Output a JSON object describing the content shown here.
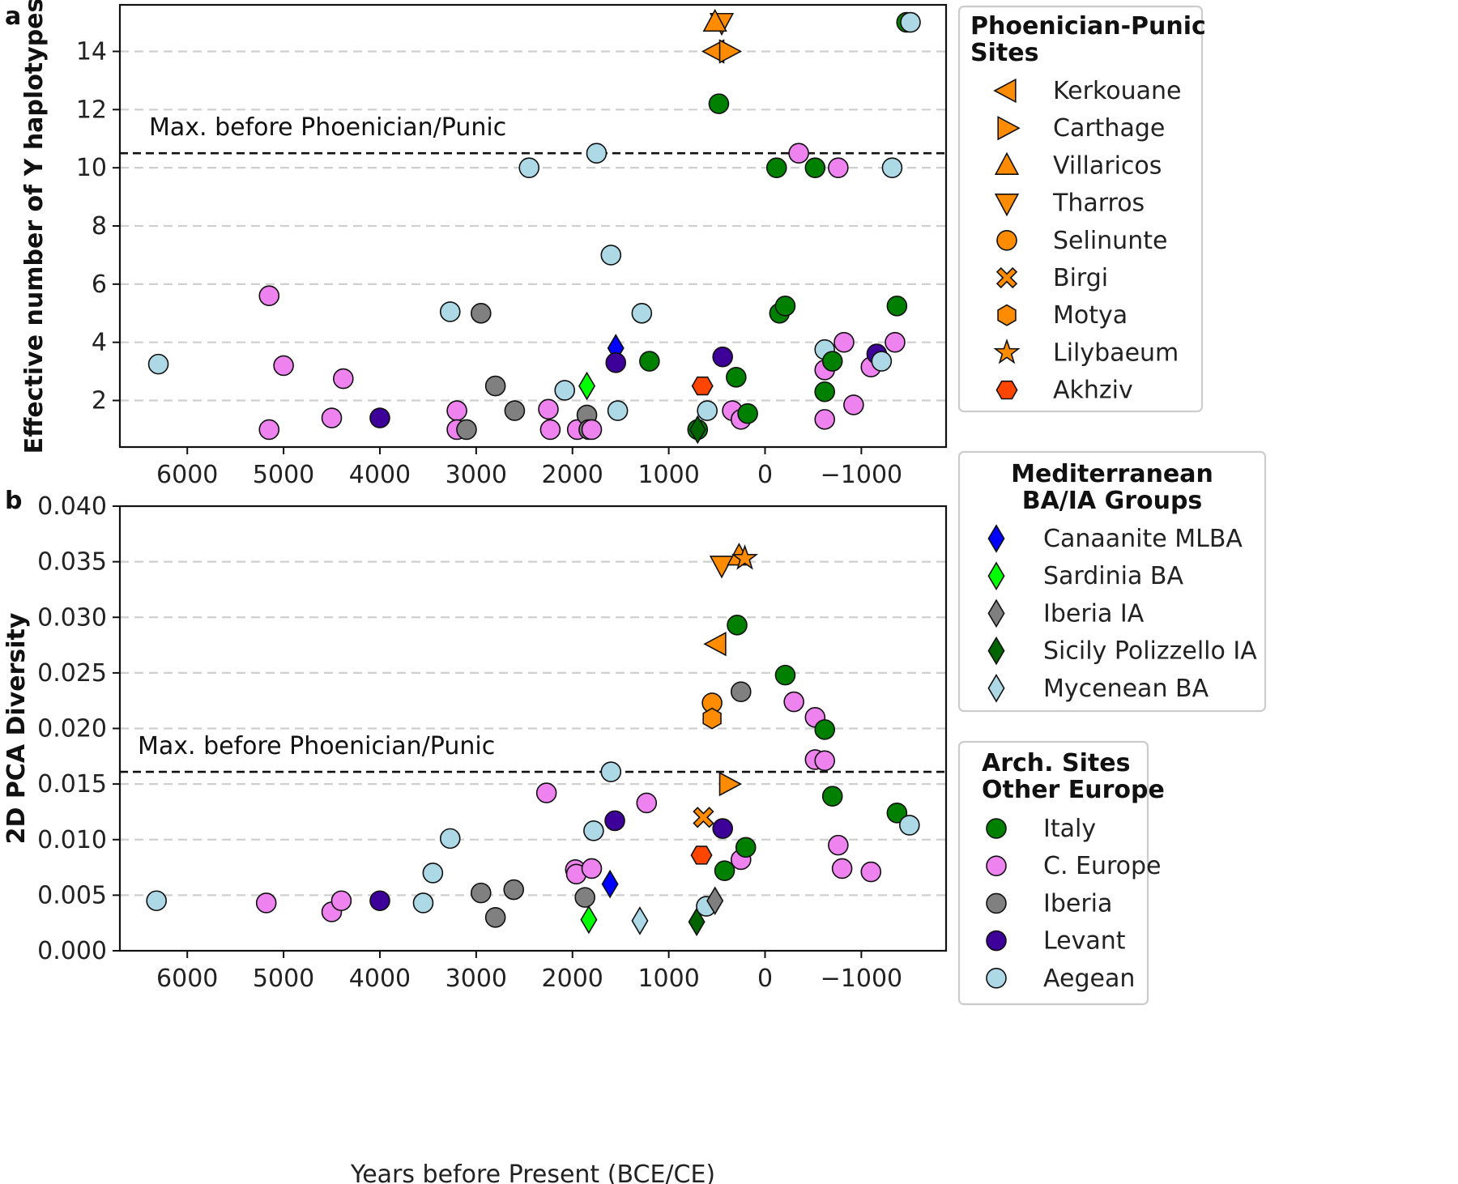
{
  "chart_data": {
    "type": "scatter",
    "xlabel": "Years before Present (BCE/CE)",
    "xlim": [
      6700,
      -1880
    ],
    "xticks": [
      6000,
      5000,
      4000,
      3000,
      2000,
      1000,
      0,
      -1000
    ],
    "xtick_labels": [
      "6000",
      "5000",
      "4000",
      "3000",
      "2000",
      "1000",
      "0",
      "−1000"
    ],
    "colors": {
      "phoenician": "#ff8c00",
      "akhziv": "#ff4500",
      "canaanite": "#0000ff",
      "sardinia": "#00ff00",
      "iberia_ia": "#7f7f7f",
      "sicily": "#006400",
      "mycenean": "#add8e6",
      "italy": "#008000",
      "c_europe": "#ee82ee",
      "iberia": "#808080",
      "levant": "#3d0099",
      "aegean": "#add8e6"
    },
    "panels": [
      {
        "label": "a",
        "ylabel": "Effective number of Y haplotypes",
        "ylim": [
          0.4,
          15.6
        ],
        "yticks": [
          2,
          4,
          6,
          8,
          10,
          12,
          14
        ],
        "ytick_labels": [
          "2",
          "4",
          "6",
          "8",
          "10",
          "12",
          "14"
        ],
        "reference": {
          "value": 10.5,
          "text": "Max. before Phoenician/Punic"
        },
        "points": [
          {
            "g": "aegean",
            "m": "circle",
            "x": 6300,
            "y": 3.25
          },
          {
            "g": "c_europe",
            "m": "circle",
            "x": 5150,
            "y": 5.6
          },
          {
            "g": "c_europe",
            "m": "circle",
            "x": 5000,
            "y": 3.2
          },
          {
            "g": "c_europe",
            "m": "circle",
            "x": 5150,
            "y": 1.0
          },
          {
            "g": "c_europe",
            "m": "circle",
            "x": 4500,
            "y": 1.4
          },
          {
            "g": "c_europe",
            "m": "circle",
            "x": 4380,
            "y": 2.75
          },
          {
            "g": "levant",
            "m": "circle",
            "x": 4000,
            "y": 1.4
          },
          {
            "g": "aegean",
            "m": "circle",
            "x": 3270,
            "y": 5.05
          },
          {
            "g": "iberia",
            "m": "circle",
            "x": 2950,
            "y": 5.0
          },
          {
            "g": "c_europe",
            "m": "circle",
            "x": 3200,
            "y": 1.65
          },
          {
            "g": "c_europe",
            "m": "circle",
            "x": 3200,
            "y": 1.0
          },
          {
            "g": "iberia",
            "m": "circle",
            "x": 3100,
            "y": 1.0
          },
          {
            "g": "iberia",
            "m": "circle",
            "x": 2800,
            "y": 2.5
          },
          {
            "g": "iberia",
            "m": "circle",
            "x": 2600,
            "y": 1.65
          },
          {
            "g": "aegean",
            "m": "circle",
            "x": 2450,
            "y": 10.0
          },
          {
            "g": "c_europe",
            "m": "circle",
            "x": 2250,
            "y": 1.7
          },
          {
            "g": "c_europe",
            "m": "circle",
            "x": 2230,
            "y": 1.0
          },
          {
            "g": "aegean",
            "m": "circle",
            "x": 2080,
            "y": 2.35
          },
          {
            "g": "c_europe",
            "m": "circle",
            "x": 1950,
            "y": 1.0
          },
          {
            "g": "iberia",
            "m": "circle",
            "x": 1850,
            "y": 1.5
          },
          {
            "g": "iberia",
            "m": "circle",
            "x": 1830,
            "y": 1.0
          },
          {
            "g": "c_europe",
            "m": "circle",
            "x": 1800,
            "y": 1.0
          },
          {
            "g": "sardinia",
            "m": "diamond",
            "x": 1850,
            "y": 2.5
          },
          {
            "g": "aegean",
            "m": "circle",
            "x": 1750,
            "y": 10.5
          },
          {
            "g": "aegean",
            "m": "circle",
            "x": 1600,
            "y": 7.0
          },
          {
            "g": "canaanite",
            "m": "diamond",
            "x": 1550,
            "y": 3.8
          },
          {
            "g": "levant",
            "m": "circle",
            "x": 1550,
            "y": 3.3
          },
          {
            "g": "aegean",
            "m": "circle",
            "x": 1530,
            "y": 1.65
          },
          {
            "g": "aegean",
            "m": "circle",
            "x": 1280,
            "y": 5.0
          },
          {
            "g": "italy",
            "m": "circle",
            "x": 1200,
            "y": 3.35
          },
          {
            "g": "akhziv",
            "m": "hexagon",
            "x": 650,
            "y": 2.5
          },
          {
            "g": "aegean",
            "m": "circle",
            "x": 600,
            "y": 1.65
          },
          {
            "g": "italy",
            "m": "circle",
            "x": 700,
            "y": 1.0
          },
          {
            "g": "sicily",
            "m": "diamond",
            "x": 700,
            "y": 1.0
          },
          {
            "g": "tharros",
            "m": "tri_down",
            "x": 450,
            "y": 15.0
          },
          {
            "g": "villaricos",
            "m": "tri_up",
            "x": 520,
            "y": 15.0
          },
          {
            "g": "kerkouane",
            "m": "tri_left",
            "x": 520,
            "y": 14.0
          },
          {
            "g": "carthage",
            "m": "tri_right",
            "x": 380,
            "y": 14.0
          },
          {
            "g": "italy",
            "m": "circle",
            "x": 480,
            "y": 12.2
          },
          {
            "g": "levant",
            "m": "circle",
            "x": 440,
            "y": 3.5
          },
          {
            "g": "italy",
            "m": "circle",
            "x": 300,
            "y": 2.8
          },
          {
            "g": "c_europe",
            "m": "circle",
            "x": 340,
            "y": 1.65
          },
          {
            "g": "c_europe",
            "m": "circle",
            "x": 250,
            "y": 1.35
          },
          {
            "g": "italy",
            "m": "circle",
            "x": 180,
            "y": 1.55
          },
          {
            "g": "italy",
            "m": "circle",
            "x": -120,
            "y": 10.0
          },
          {
            "g": "italy",
            "m": "circle",
            "x": -150,
            "y": 5.0
          },
          {
            "g": "italy",
            "m": "circle",
            "x": -210,
            "y": 5.25
          },
          {
            "g": "c_europe",
            "m": "circle",
            "x": -350,
            "y": 10.5
          },
          {
            "g": "italy",
            "m": "circle",
            "x": -520,
            "y": 10.0
          },
          {
            "g": "aegean",
            "m": "circle",
            "x": -620,
            "y": 3.75
          },
          {
            "g": "c_europe",
            "m": "circle",
            "x": -620,
            "y": 3.05
          },
          {
            "g": "italy",
            "m": "circle",
            "x": -620,
            "y": 2.3
          },
          {
            "g": "c_europe",
            "m": "circle",
            "x": -620,
            "y": 1.35
          },
          {
            "g": "italy",
            "m": "circle",
            "x": -700,
            "y": 3.35
          },
          {
            "g": "c_europe",
            "m": "circle",
            "x": -760,
            "y": 10.0
          },
          {
            "g": "c_europe",
            "m": "circle",
            "x": -820,
            "y": 4.0
          },
          {
            "g": "c_europe",
            "m": "circle",
            "x": -920,
            "y": 1.85
          },
          {
            "g": "c_europe",
            "m": "circle",
            "x": -1100,
            "y": 3.15
          },
          {
            "g": "levant",
            "m": "circle",
            "x": -1160,
            "y": 3.6
          },
          {
            "g": "aegean",
            "m": "circle",
            "x": -1210,
            "y": 3.35
          },
          {
            "g": "aegean",
            "m": "circle",
            "x": -1320,
            "y": 10.0
          },
          {
            "g": "c_europe",
            "m": "circle",
            "x": -1350,
            "y": 4.0
          },
          {
            "g": "italy",
            "m": "circle",
            "x": -1370,
            "y": 5.25
          },
          {
            "g": "italy",
            "m": "circle",
            "x": -1470,
            "y": 15.0
          },
          {
            "g": "aegean",
            "m": "circle",
            "x": -1510,
            "y": 15.0
          }
        ]
      },
      {
        "label": "b",
        "ylabel": "2D PCA Diversity",
        "ylim": [
          0.0,
          0.04
        ],
        "yticks": [
          0.0,
          0.005,
          0.01,
          0.015,
          0.02,
          0.025,
          0.03,
          0.035,
          0.04
        ],
        "ytick_labels": [
          "0.000",
          "0.005",
          "0.010",
          "0.015",
          "0.020",
          "0.025",
          "0.030",
          "0.035",
          "0.040"
        ],
        "reference": {
          "value": 0.0161,
          "text": "Max. before Phoenician/Punic"
        },
        "points": [
          {
            "g": "aegean",
            "m": "circle",
            "x": 6320,
            "y": 0.0045
          },
          {
            "g": "c_europe",
            "m": "circle",
            "x": 5180,
            "y": 0.0043
          },
          {
            "g": "c_europe",
            "m": "circle",
            "x": 4500,
            "y": 0.0035
          },
          {
            "g": "c_europe",
            "m": "circle",
            "x": 4400,
            "y": 0.0045
          },
          {
            "g": "levant",
            "m": "circle",
            "x": 4000,
            "y": 0.0045
          },
          {
            "g": "aegean",
            "m": "circle",
            "x": 3550,
            "y": 0.0043
          },
          {
            "g": "aegean",
            "m": "circle",
            "x": 3450,
            "y": 0.007
          },
          {
            "g": "aegean",
            "m": "circle",
            "x": 3270,
            "y": 0.0101
          },
          {
            "g": "iberia",
            "m": "circle",
            "x": 2950,
            "y": 0.0052
          },
          {
            "g": "iberia",
            "m": "circle",
            "x": 2800,
            "y": 0.003
          },
          {
            "g": "iberia",
            "m": "circle",
            "x": 2610,
            "y": 0.0055
          },
          {
            "g": "c_europe",
            "m": "circle",
            "x": 2270,
            "y": 0.0142
          },
          {
            "g": "c_europe",
            "m": "circle",
            "x": 1970,
            "y": 0.0073
          },
          {
            "g": "c_europe",
            "m": "circle",
            "x": 1960,
            "y": 0.0069
          },
          {
            "g": "iberia",
            "m": "circle",
            "x": 1870,
            "y": 0.0048
          },
          {
            "g": "sardinia",
            "m": "diamond",
            "x": 1830,
            "y": 0.0028
          },
          {
            "g": "c_europe",
            "m": "circle",
            "x": 1800,
            "y": 0.0074
          },
          {
            "g": "aegean",
            "m": "circle",
            "x": 1780,
            "y": 0.0108
          },
          {
            "g": "aegean",
            "m": "circle",
            "x": 1600,
            "y": 0.0161
          },
          {
            "g": "canaanite",
            "m": "diamond",
            "x": 1610,
            "y": 0.006
          },
          {
            "g": "levant",
            "m": "circle",
            "x": 1560,
            "y": 0.0117
          },
          {
            "g": "mycenean",
            "m": "diamond",
            "x": 1300,
            "y": 0.0027
          },
          {
            "g": "c_europe",
            "m": "circle",
            "x": 1230,
            "y": 0.0133
          },
          {
            "g": "sicily",
            "m": "diamond",
            "x": 710,
            "y": 0.0026
          },
          {
            "g": "akhziv",
            "m": "hexagon",
            "x": 660,
            "y": 0.0086
          },
          {
            "g": "birgi",
            "m": "x",
            "x": 640,
            "y": 0.012
          },
          {
            "g": "aegean",
            "m": "circle",
            "x": 610,
            "y": 0.004
          },
          {
            "g": "selinunte",
            "m": "circle",
            "x": 550,
            "y": 0.0223
          },
          {
            "g": "motya",
            "m": "hexagon_v",
            "x": 550,
            "y": 0.0209
          },
          {
            "g": "iberia_ia",
            "m": "diamond",
            "x": 520,
            "y": 0.0045
          },
          {
            "g": "kerkouane",
            "m": "tri_left",
            "x": 500,
            "y": 0.0276
          },
          {
            "g": "tharros",
            "m": "tri_down",
            "x": 450,
            "y": 0.0347
          },
          {
            "g": "levant",
            "m": "circle",
            "x": 440,
            "y": 0.011
          },
          {
            "g": "italy",
            "m": "circle",
            "x": 420,
            "y": 0.0072
          },
          {
            "g": "carthage",
            "m": "tri_right",
            "x": 380,
            "y": 0.015
          },
          {
            "g": "villaricos",
            "m": "tri_up",
            "x": 270,
            "y": 0.0355
          },
          {
            "g": "lilybaeum",
            "m": "star",
            "x": 210,
            "y": 0.0353
          },
          {
            "g": "italy",
            "m": "circle",
            "x": 290,
            "y": 0.0293
          },
          {
            "g": "iberia",
            "m": "circle",
            "x": 250,
            "y": 0.0233
          },
          {
            "g": "c_europe",
            "m": "circle",
            "x": 250,
            "y": 0.0082
          },
          {
            "g": "italy",
            "m": "circle",
            "x": 200,
            "y": 0.0093
          },
          {
            "g": "italy",
            "m": "circle",
            "x": -210,
            "y": 0.0248
          },
          {
            "g": "c_europe",
            "m": "circle",
            "x": -300,
            "y": 0.0224
          },
          {
            "g": "c_europe",
            "m": "circle",
            "x": -520,
            "y": 0.021
          },
          {
            "g": "c_europe",
            "m": "circle",
            "x": -520,
            "y": 0.0172
          },
          {
            "g": "c_europe",
            "m": "circle",
            "x": -620,
            "y": 0.0171
          },
          {
            "g": "italy",
            "m": "circle",
            "x": -620,
            "y": 0.0199
          },
          {
            "g": "italy",
            "m": "circle",
            "x": -700,
            "y": 0.0139
          },
          {
            "g": "c_europe",
            "m": "circle",
            "x": -760,
            "y": 0.0095
          },
          {
            "g": "c_europe",
            "m": "circle",
            "x": -800,
            "y": 0.0074
          },
          {
            "g": "c_europe",
            "m": "circle",
            "x": -1100,
            "y": 0.0071
          },
          {
            "g": "italy",
            "m": "circle",
            "x": -1370,
            "y": 0.0124
          },
          {
            "g": "aegean",
            "m": "circle",
            "x": -1500,
            "y": 0.0113
          }
        ]
      }
    ],
    "legends": [
      {
        "title": [
          "Phoenician-Punic",
          "Sites"
        ],
        "align": "left",
        "items": [
          {
            "label": "Kerkouane",
            "m": "tri_left",
            "g": "phoenician"
          },
          {
            "label": "Carthage",
            "m": "tri_right",
            "g": "phoenician"
          },
          {
            "label": "Villaricos",
            "m": "tri_up",
            "g": "phoenician"
          },
          {
            "label": "Tharros",
            "m": "tri_down",
            "g": "phoenician"
          },
          {
            "label": "Selinunte",
            "m": "circle",
            "g": "phoenician"
          },
          {
            "label": "Birgi",
            "m": "x",
            "g": "phoenician"
          },
          {
            "label": "Motya",
            "m": "hexagon_v",
            "g": "phoenician"
          },
          {
            "label": "Lilybaeum",
            "m": "star",
            "g": "phoenician"
          },
          {
            "label": "Akhziv",
            "m": "hexagon",
            "g": "akhziv"
          }
        ]
      },
      {
        "title": [
          "Mediterranean",
          "BA/IA Groups"
        ],
        "align": "center",
        "items": [
          {
            "label": "Canaanite MLBA",
            "m": "diamond",
            "g": "canaanite"
          },
          {
            "label": "Sardinia BA",
            "m": "diamond",
            "g": "sardinia"
          },
          {
            "label": "Iberia IA",
            "m": "diamond",
            "g": "iberia_ia"
          },
          {
            "label": "Sicily Polizzello IA",
            "m": "diamond",
            "g": "sicily"
          },
          {
            "label": "Mycenean BA",
            "m": "diamond",
            "g": "mycenean"
          }
        ]
      },
      {
        "title": [
          "Arch. Sites",
          "Other Europe"
        ],
        "align": "left",
        "items": [
          {
            "label": "Italy",
            "m": "circle",
            "g": "italy"
          },
          {
            "label": "C. Europe",
            "m": "circle",
            "g": "c_europe"
          },
          {
            "label": "Iberia",
            "m": "circle",
            "g": "iberia"
          },
          {
            "label": "Levant",
            "m": "circle",
            "g": "levant"
          },
          {
            "label": "Aegean",
            "m": "circle",
            "g": "aegean"
          }
        ]
      }
    ]
  }
}
